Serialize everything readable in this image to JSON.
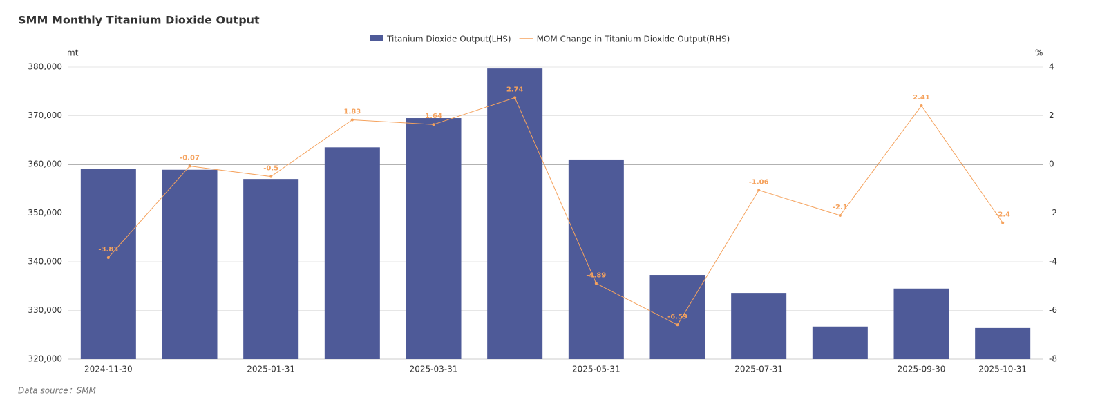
{
  "chart_data": {
    "type": "bar-line",
    "title": "SMM Monthly Titanium Dioxide Output",
    "y_unit": "mt",
    "y2_unit": "%",
    "source": "Data source：SMM",
    "categories": [
      "2024-11-30",
      null,
      "2025-01-31",
      null,
      "2025-03-31",
      null,
      "2025-05-31",
      null,
      "2025-07-31",
      null,
      "2025-09-30",
      "2025-10-31"
    ],
    "series": [
      {
        "name": "Titanium Dioxide Output(LHS)",
        "type": "bar",
        "color": "#4e5a98",
        "values": [
          359100,
          358900,
          357000,
          363500,
          369500,
          379700,
          361000,
          337300,
          333600,
          326700,
          334500,
          326400
        ]
      },
      {
        "name": "MOM Change in Titanium Dioxide Output(RHS)",
        "type": "line",
        "axis": "y2",
        "color": "#f5a25d",
        "values": [
          -3.83,
          -0.07,
          -0.5,
          1.83,
          1.64,
          2.74,
          -4.89,
          -6.59,
          -1.06,
          -2.1,
          2.41,
          -2.4
        ]
      }
    ],
    "ylim": [
      320000,
      380000
    ],
    "yticks": [
      {
        "value": 320000,
        "label": "320,000"
      },
      {
        "value": 330000,
        "label": "330,000"
      },
      {
        "value": 340000,
        "label": "340,000"
      },
      {
        "value": 350000,
        "label": "350,000"
      },
      {
        "value": 360000,
        "label": "360,000"
      },
      {
        "value": 370000,
        "label": "370,000"
      },
      {
        "value": 380000,
        "label": "380,000"
      }
    ],
    "y2lim": [
      -8,
      4
    ],
    "y2ticks": [
      -8,
      -6,
      -4,
      -2,
      0,
      2,
      4
    ],
    "grid": true
  }
}
